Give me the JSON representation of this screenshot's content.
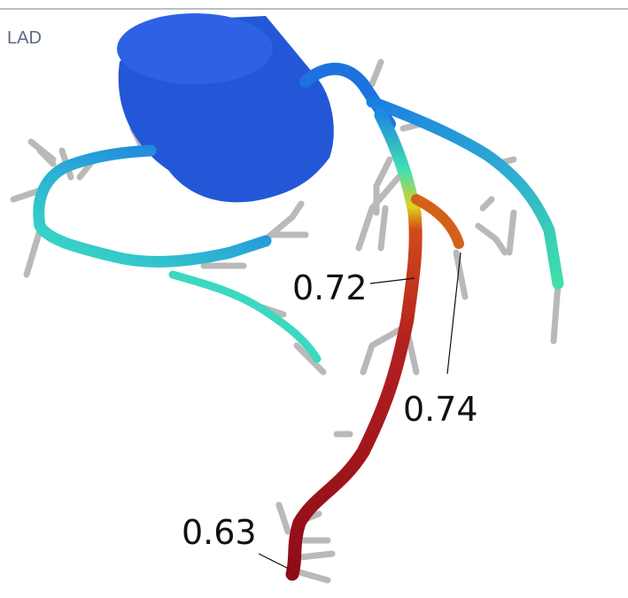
{
  "header": {
    "title": "LAD"
  },
  "annotations": [
    {
      "text": "0.72"
    },
    {
      "text": "0.74"
    },
    {
      "text": "0.63"
    }
  ]
}
